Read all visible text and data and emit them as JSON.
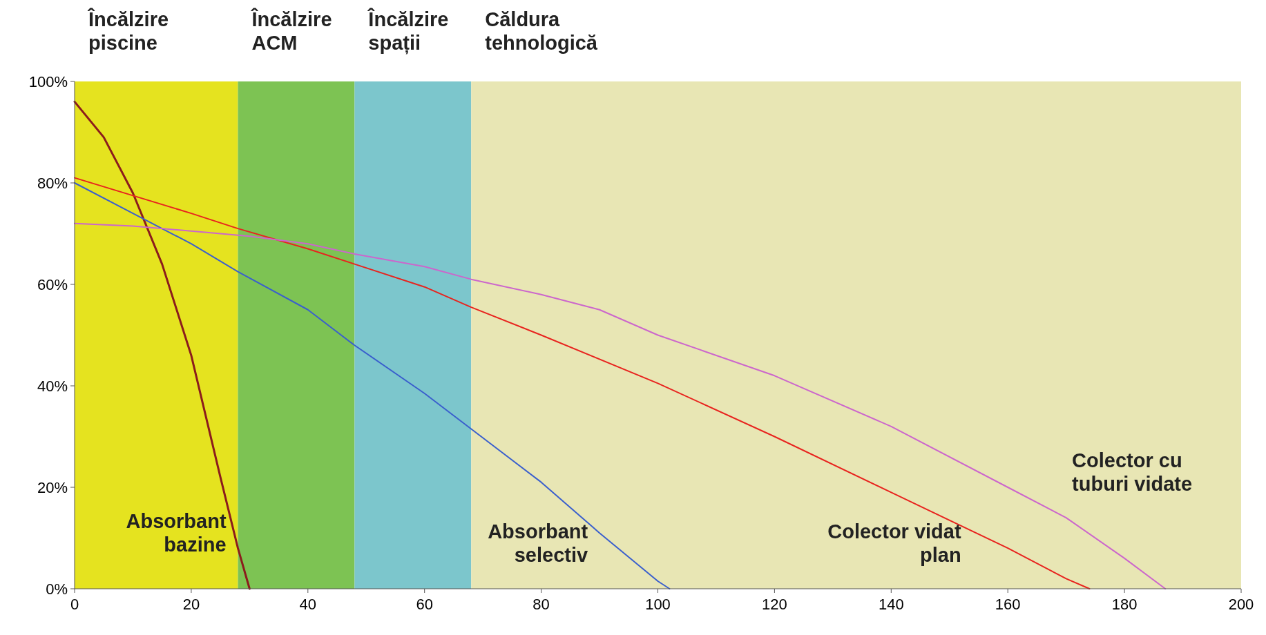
{
  "chart_data": {
    "type": "line",
    "xlim": [
      0,
      200
    ],
    "ylim": [
      0,
      100
    ],
    "xticks": [
      0,
      20,
      40,
      60,
      80,
      100,
      120,
      140,
      160,
      180,
      200
    ],
    "yticks": [
      {
        "value": 0,
        "label": "0%"
      },
      {
        "value": 20,
        "label": "20%"
      },
      {
        "value": 40,
        "label": "40%"
      },
      {
        "value": 60,
        "label": "60%"
      },
      {
        "value": 80,
        "label": "80%"
      },
      {
        "value": 100,
        "label": "100%"
      }
    ],
    "grid": false,
    "marker": "none",
    "line_style": "solid",
    "bands": [
      {
        "axis": "x",
        "from": 0,
        "to": 28,
        "label": "Încălzire piscine",
        "color": "#e5e31f"
      },
      {
        "axis": "x",
        "from": 28,
        "to": 48,
        "label": "Încălzire ACM",
        "color": "#7dc353"
      },
      {
        "axis": "x",
        "from": 48,
        "to": 68,
        "label": "Încălzire spații",
        "color": "#7cc6cc"
      },
      {
        "axis": "x",
        "from": 68,
        "to": 200,
        "label": "Căldura tehnologică",
        "color": "#e8e6b4"
      }
    ],
    "series": [
      {
        "name": "Absorbant bazine",
        "color": "#8b1c1c",
        "x": [
          0,
          5,
          10,
          15,
          20,
          25,
          28,
          30
        ],
        "values": [
          96,
          89,
          78,
          64,
          46,
          22,
          8,
          0
        ]
      },
      {
        "name": "Absorbant selectiv",
        "color": "#3a5fcd",
        "x": [
          0,
          10,
          20,
          28,
          40,
          48,
          60,
          68,
          80,
          90,
          100,
          102
        ],
        "values": [
          80,
          74,
          68,
          62.5,
          55,
          48,
          38.5,
          31.5,
          21,
          11,
          1.5,
          0
        ]
      },
      {
        "name": "Colector vidat plan",
        "color": "#e8231e",
        "x": [
          0,
          10,
          20,
          28,
          40,
          48,
          60,
          68,
          80,
          100,
          120,
          140,
          160,
          170,
          174
        ],
        "values": [
          81,
          77.5,
          74,
          71,
          67,
          64,
          59.5,
          55.5,
          50,
          40.5,
          30,
          19,
          8,
          2,
          0
        ]
      },
      {
        "name": "Colector cu tuburi vidate",
        "color": "#cc66cc",
        "x": [
          0,
          10,
          20,
          30,
          40,
          48,
          60,
          68,
          80,
          90,
          100,
          120,
          140,
          160,
          170,
          180,
          187
        ],
        "values": [
          72,
          71.5,
          70.5,
          69.5,
          68,
          66,
          63.5,
          61,
          58,
          55,
          50,
          42,
          32,
          20,
          14,
          6,
          0
        ]
      }
    ]
  }
}
